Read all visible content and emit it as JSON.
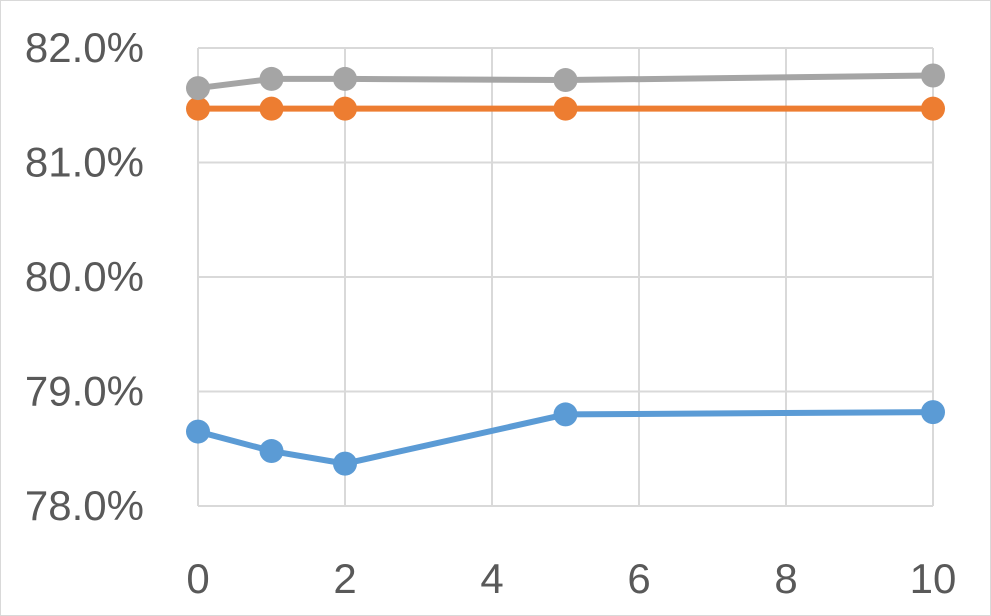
{
  "chart_data": {
    "type": "line",
    "title": "",
    "xlabel": "",
    "ylabel": "",
    "x": [
      0,
      1,
      2,
      5,
      10
    ],
    "xlim": [
      0,
      10
    ],
    "xticks": [
      0,
      2,
      4,
      6,
      8,
      10
    ],
    "xtick_labels": [
      "0",
      "2",
      "4",
      "6",
      "8",
      "10"
    ],
    "ylim": [
      78.0,
      82.0
    ],
    "yticks": [
      78.0,
      79.0,
      80.0,
      81.0,
      82.0
    ],
    "ytick_labels": [
      "78.0%",
      "79.0%",
      "80.0%",
      "81.0%",
      "82.0%"
    ],
    "grid": true,
    "legend": "none",
    "series": [
      {
        "color": "#5b9bd5",
        "values": [
          78.65,
          78.48,
          78.37,
          78.8,
          78.82
        ]
      },
      {
        "color": "#ed7d31",
        "values": [
          81.47,
          81.47,
          81.47,
          81.47,
          81.47
        ]
      },
      {
        "color": "#a5a5a5",
        "values": [
          81.65,
          81.73,
          81.73,
          81.72,
          81.76
        ]
      }
    ]
  }
}
